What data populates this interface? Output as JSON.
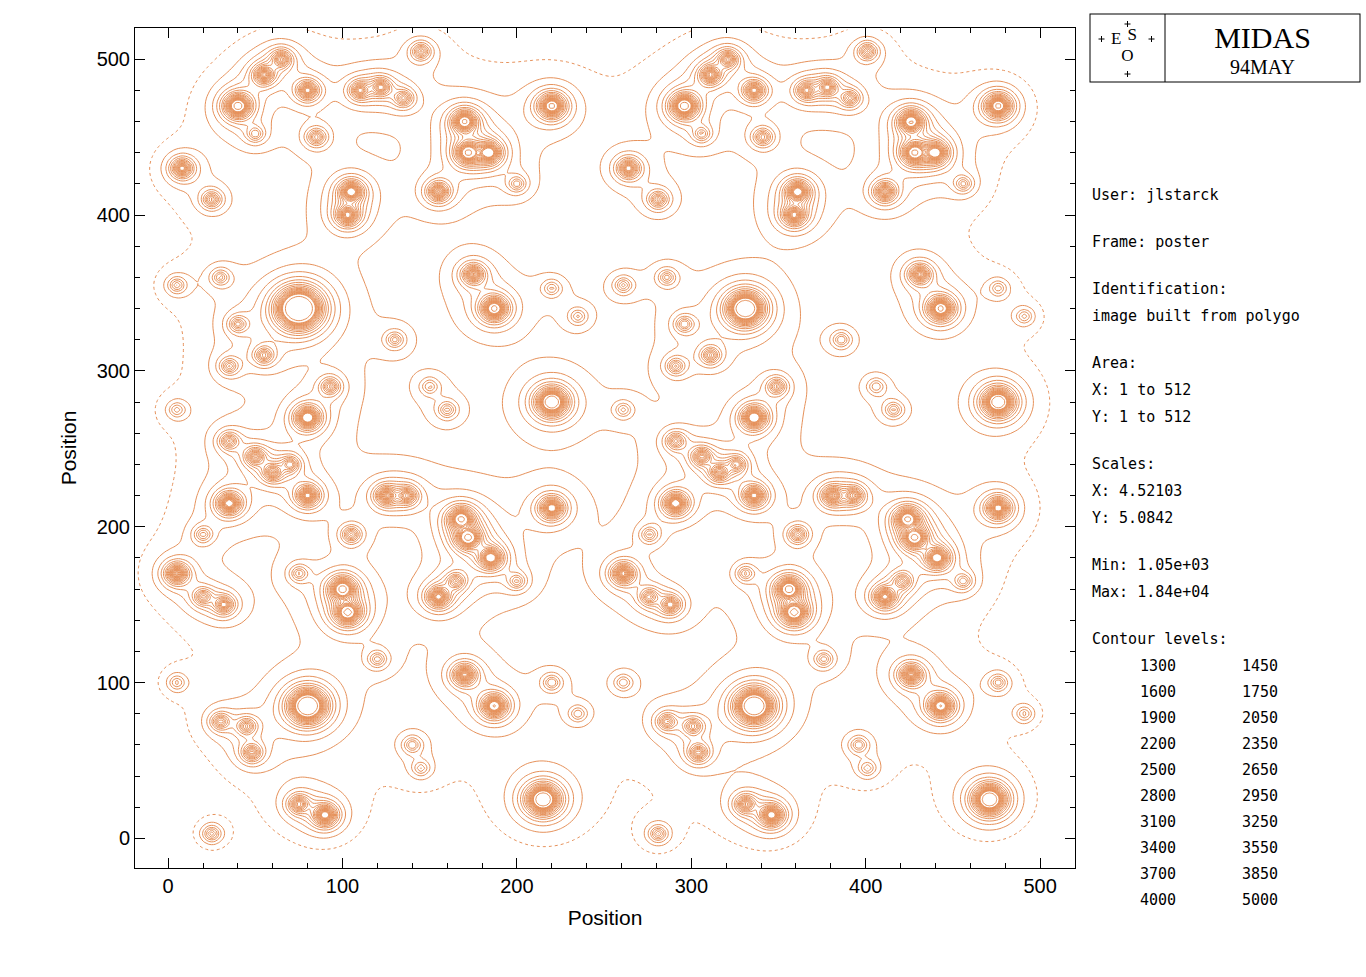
{
  "chart_data": {
    "type": "contour",
    "xlabel": "Position",
    "ylabel": "Position",
    "xlim": [
      -19,
      520
    ],
    "ylim": [
      -19,
      520
    ],
    "xticks": [
      0,
      100,
      200,
      300,
      400,
      500
    ],
    "yticks": [
      0,
      100,
      200,
      300,
      400,
      500
    ],
    "levels": [
      1300,
      1450,
      1600,
      1750,
      1900,
      2050,
      2200,
      2350,
      2500,
      2650,
      2800,
      2950,
      3100,
      3250,
      3400,
      3550,
      3700,
      3850,
      4000,
      5000
    ],
    "background": 1050,
    "sources": [
      [
        40,
        470,
        6000
      ],
      [
        55,
        490,
        3500
      ],
      [
        65,
        500,
        3000
      ],
      [
        80,
        480,
        3500
      ],
      [
        8,
        430,
        3500
      ],
      [
        25,
        410,
        2500
      ],
      [
        110,
        480,
        3000
      ],
      [
        122,
        482,
        3000
      ],
      [
        135,
        475,
        2500
      ],
      [
        170,
        460,
        5000
      ],
      [
        172,
        440,
        5000
      ],
      [
        184,
        440,
        4500
      ],
      [
        220,
        470,
        5500
      ],
      [
        85,
        450,
        2500
      ],
      [
        105,
        415,
        4500
      ],
      [
        103,
        400,
        4000
      ],
      [
        155,
        415,
        3500
      ],
      [
        200,
        420,
        2000
      ],
      [
        175,
        362,
        3500
      ],
      [
        187,
        340,
        5500
      ],
      [
        75,
        340,
        18400
      ],
      [
        5,
        355,
        2000
      ],
      [
        30,
        360,
        2000
      ],
      [
        40,
        330,
        2200
      ],
      [
        35,
        303,
        2200
      ],
      [
        55,
        310,
        2500
      ],
      [
        80,
        270,
        5000
      ],
      [
        93,
        290,
        2500
      ],
      [
        130,
        320,
        2000
      ],
      [
        150,
        290,
        1800
      ],
      [
        160,
        275,
        2000
      ],
      [
        220,
        280,
        8000
      ],
      [
        235,
        335,
        1800
      ],
      [
        5,
        275,
        1800
      ],
      [
        220,
        353,
        1800
      ],
      [
        50,
        452,
        2000
      ],
      [
        145,
        505,
        2500
      ],
      [
        296,
        470,
        6000
      ],
      [
        311,
        490,
        3500
      ],
      [
        321,
        500,
        3000
      ],
      [
        336,
        480,
        3500
      ],
      [
        264,
        430,
        3500
      ],
      [
        281,
        410,
        2500
      ],
      [
        366,
        480,
        3000
      ],
      [
        378,
        482,
        3000
      ],
      [
        391,
        475,
        2500
      ],
      [
        426,
        460,
        5000
      ],
      [
        428,
        440,
        5000
      ],
      [
        440,
        440,
        4500
      ],
      [
        476,
        470,
        5500
      ],
      [
        341,
        450,
        2500
      ],
      [
        361,
        415,
        4500
      ],
      [
        359,
        400,
        4000
      ],
      [
        411,
        415,
        3500
      ],
      [
        456,
        420,
        2000
      ],
      [
        431,
        362,
        3500
      ],
      [
        443,
        340,
        5500
      ],
      [
        331,
        340,
        11000
      ],
      [
        261,
        355,
        2000
      ],
      [
        286,
        360,
        2000
      ],
      [
        296,
        330,
        2200
      ],
      [
        291,
        303,
        2200
      ],
      [
        311,
        310,
        2500
      ],
      [
        336,
        270,
        5000
      ],
      [
        349,
        290,
        2500
      ],
      [
        386,
        320,
        2000
      ],
      [
        406,
        290,
        1800
      ],
      [
        416,
        275,
        2000
      ],
      [
        476,
        280,
        8000
      ],
      [
        491,
        335,
        1800
      ],
      [
        261,
        275,
        1800
      ],
      [
        476,
        353,
        1800
      ],
      [
        306,
        452,
        2000
      ],
      [
        401,
        505,
        2500
      ],
      [
        35,
        255,
        2500
      ],
      [
        50,
        245,
        3000
      ],
      [
        60,
        235,
        3000
      ],
      [
        70,
        240,
        2500
      ],
      [
        35,
        215,
        4500
      ],
      [
        20,
        195,
        2000
      ],
      [
        80,
        220,
        4000
      ],
      [
        105,
        195,
        2500
      ],
      [
        125,
        220,
        3500
      ],
      [
        137,
        220,
        3000
      ],
      [
        168,
        205,
        5000
      ],
      [
        172,
        193,
        5000
      ],
      [
        185,
        180,
        4500
      ],
      [
        220,
        212,
        4500
      ],
      [
        5,
        170,
        4000
      ],
      [
        20,
        155,
        2500
      ],
      [
        32,
        150,
        3000
      ],
      [
        75,
        170,
        2000
      ],
      [
        100,
        160,
        5500
      ],
      [
        103,
        145,
        5500
      ],
      [
        155,
        155,
        4000
      ],
      [
        165,
        165,
        2500
      ],
      [
        200,
        165,
        2000
      ],
      [
        80,
        85,
        12000
      ],
      [
        30,
        75,
        2500
      ],
      [
        45,
        72,
        2500
      ],
      [
        48,
        55,
        2800
      ],
      [
        170,
        105,
        4000
      ],
      [
        187,
        85,
        5000
      ],
      [
        220,
        100,
        2000
      ],
      [
        90,
        15,
        4500
      ],
      [
        75,
        22,
        3000
      ],
      [
        215,
        25,
        9000
      ],
      [
        140,
        60,
        2000
      ],
      [
        235,
        80,
        1800
      ],
      [
        120,
        115,
        2000
      ],
      [
        5,
        100,
        1800
      ],
      [
        25,
        3,
        2200
      ],
      [
        145,
        45,
        1800
      ],
      [
        291,
        255,
        2500
      ],
      [
        306,
        245,
        3000
      ],
      [
        316,
        235,
        3000
      ],
      [
        326,
        240,
        2500
      ],
      [
        291,
        215,
        4500
      ],
      [
        276,
        195,
        2000
      ],
      [
        336,
        220,
        4000
      ],
      [
        361,
        195,
        2500
      ],
      [
        381,
        220,
        3500
      ],
      [
        393,
        220,
        3000
      ],
      [
        424,
        205,
        5000
      ],
      [
        428,
        193,
        5000
      ],
      [
        441,
        180,
        4500
      ],
      [
        476,
        212,
        4500
      ],
      [
        261,
        170,
        4000
      ],
      [
        276,
        155,
        2500
      ],
      [
        288,
        150,
        3000
      ],
      [
        331,
        170,
        2000
      ],
      [
        356,
        160,
        5500
      ],
      [
        359,
        145,
        5500
      ],
      [
        411,
        155,
        4000
      ],
      [
        421,
        165,
        2500
      ],
      [
        456,
        165,
        2000
      ],
      [
        336,
        85,
        12000
      ],
      [
        286,
        75,
        2500
      ],
      [
        301,
        72,
        2500
      ],
      [
        304,
        55,
        2800
      ],
      [
        426,
        105,
        4000
      ],
      [
        443,
        85,
        5000
      ],
      [
        476,
        100,
        2000
      ],
      [
        346,
        15,
        4500
      ],
      [
        331,
        22,
        3000
      ],
      [
        471,
        25,
        9000
      ],
      [
        396,
        60,
        2000
      ],
      [
        491,
        80,
        1800
      ],
      [
        376,
        115,
        2000
      ],
      [
        261,
        100,
        1800
      ],
      [
        281,
        3,
        2200
      ],
      [
        401,
        45,
        1800
      ]
    ]
  },
  "panel": {
    "logo": "ESO",
    "title": "MIDAS",
    "date": "94MAY",
    "groups": [
      [
        "User: jlstarck"
      ],
      [
        "Frame: poster"
      ],
      [
        "Identification:",
        "image built from polygo"
      ],
      [
        "Area:",
        "X: 1 to 512",
        "Y: 1 to 512"
      ],
      [
        "Scales:",
        "X: 4.52103",
        "Y: 5.0842"
      ],
      [
        "Min: 1.05e+03",
        "Max: 1.84e+04"
      ]
    ],
    "levels_title": "Contour levels:"
  }
}
